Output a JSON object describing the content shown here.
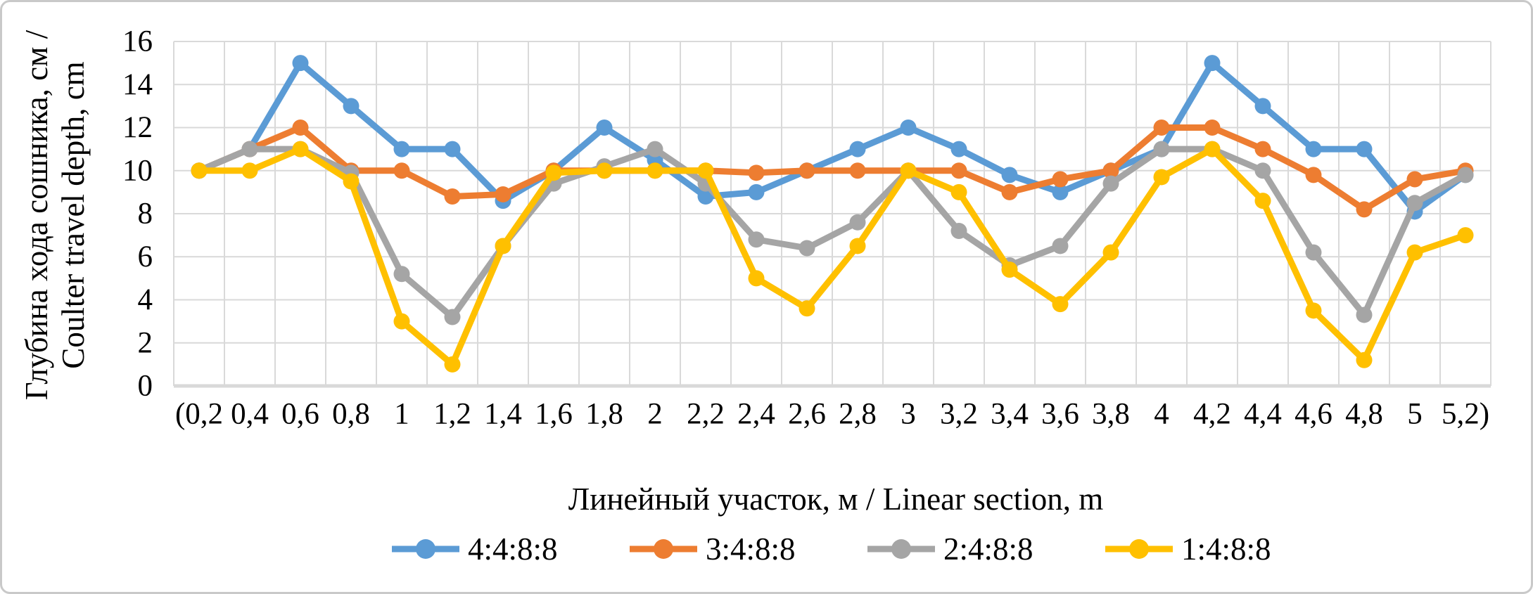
{
  "figure": {
    "background": "#ffffff",
    "border_color": "#c9c9c9"
  },
  "chart_data": {
    "type": "line",
    "title": "",
    "xlabel": "Линейный участок, м / Linear section, m",
    "ylabel_line1": "Глубина хода сошника, см /",
    "ylabel_line2": "Coulter travel depth, cm",
    "x_categories": [
      "(0,2",
      "0,4",
      "0,6",
      "0,8",
      "1",
      "1,2",
      "1,4",
      "1,6",
      "1,8",
      "2",
      "2,2",
      "2,4",
      "2,6",
      "2,8",
      "3",
      "3,2",
      "3,4",
      "3,6",
      "3,8",
      "4",
      "4,2",
      "4,4",
      "4,6",
      "4,8",
      "5",
      "5,2)"
    ],
    "ylim": [
      0,
      16
    ],
    "y_ticks": [
      "0",
      "2",
      "4",
      "6",
      "8",
      "10",
      "12",
      "14",
      "16"
    ],
    "grid": true,
    "gridline_color": "#D9D9D9",
    "axisline_color": "#D9D9D9",
    "legend_position": "bottom",
    "marker": "circle",
    "series": [
      {
        "name": "4:4:8:8",
        "color": "#5B9BD5",
        "values": [
          10,
          11,
          15,
          13,
          11,
          11,
          8.6,
          10,
          12,
          10.5,
          8.8,
          9,
          10,
          11,
          12,
          11,
          9.8,
          9,
          10,
          11,
          15,
          13,
          11,
          11,
          8.1,
          9.8
        ]
      },
      {
        "name": "3:4:8:8",
        "color": "#ED7D31",
        "values": [
          10,
          11,
          12,
          10,
          10,
          8.8,
          8.9,
          10,
          10,
          10,
          10,
          9.9,
          10,
          10,
          10,
          10,
          9,
          9.6,
          10,
          12,
          12,
          11,
          9.8,
          8.2,
          9.6,
          10
        ]
      },
      {
        "name": "2:4:8:8",
        "color": "#A5A5A5",
        "values": [
          10,
          11,
          11,
          9.9,
          5.2,
          3.2,
          6.5,
          9.4,
          10.2,
          11,
          9.4,
          6.8,
          6.4,
          7.6,
          10,
          7.2,
          5.6,
          6.5,
          9.4,
          11,
          11,
          10,
          6.2,
          3.3,
          8.5,
          9.8
        ]
      },
      {
        "name": "1:4:8:8",
        "color": "#FFC000",
        "values": [
          10,
          10,
          11,
          9.5,
          3,
          1,
          6.5,
          9.9,
          10,
          10,
          10,
          5,
          3.6,
          6.5,
          10,
          9,
          5.4,
          3.8,
          6.2,
          9.7,
          11,
          8.6,
          3.5,
          1.2,
          6.2,
          7
        ]
      }
    ]
  }
}
